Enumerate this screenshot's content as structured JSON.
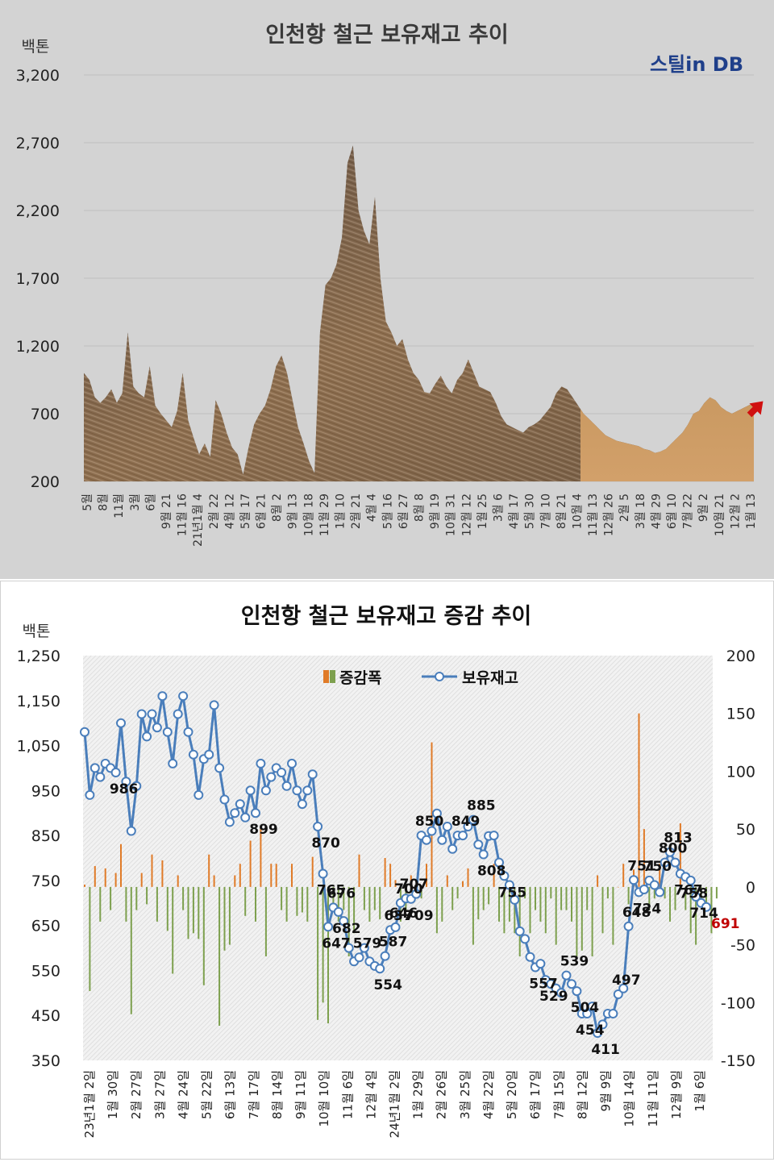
{
  "chart_data": [
    {
      "type": "area",
      "title": "인천항 철근 보유재고 추이",
      "ylabel": "백톤",
      "brand": "스틸in DB",
      "ylim": [
        200,
        3200
      ],
      "yticks": [
        "200",
        "700",
        "1,200",
        "1,700",
        "2,200",
        "2,700",
        "3,200"
      ],
      "xticks": [
        "5월",
        "8월",
        "11월",
        "3월",
        "6월",
        "9월 21",
        "11월 16",
        "21년1월 4",
        "2월 22",
        "4월 12",
        "5월 17",
        "6월 21",
        "8월 2",
        "9월 13",
        "10월 18",
        "11월 29",
        "1월 10",
        "2월 21",
        "4월 4",
        "5월 16",
        "6월 27",
        "8월 8",
        "9월 19",
        "10월 31",
        "12월 12",
        "1월 25",
        "3월 6",
        "4월 17",
        "5월 30",
        "7월 10",
        "8월 21",
        "10월 4",
        "11월 13",
        "12월 26",
        "2월 5",
        "3월 18",
        "4월 29",
        "6월 10",
        "7월 22",
        "9월 2",
        "10월 21",
        "12월 2",
        "1월 13"
      ],
      "values": [
        1000,
        950,
        820,
        780,
        820,
        880,
        780,
        850,
        1300,
        900,
        850,
        820,
        1050,
        760,
        700,
        650,
        600,
        720,
        1000,
        650,
        520,
        400,
        480,
        380,
        800,
        700,
        560,
        450,
        400,
        250,
        450,
        620,
        700,
        760,
        880,
        1050,
        1130,
        1000,
        800,
        600,
        480,
        350,
        260,
        1300,
        1650,
        1700,
        1800,
        2000,
        2550,
        2680,
        2200,
        2050,
        1950,
        2300,
        1700,
        1380,
        1300,
        1200,
        1250,
        1100,
        1000,
        950,
        860,
        850,
        920,
        980,
        900,
        850,
        950,
        1000,
        1100,
        1000,
        900,
        880,
        860,
        780,
        680,
        620,
        600,
        580,
        560,
        600,
        620,
        650,
        700,
        750,
        850,
        900,
        880,
        820,
        760,
        700,
        660,
        620,
        580,
        540,
        520,
        500,
        490,
        480,
        470,
        460,
        440,
        430,
        410,
        420,
        440,
        480,
        520,
        560,
        620,
        700,
        720,
        780,
        820,
        800,
        750,
        720,
        700,
        720,
        740,
        760,
        780
      ]
    },
    {
      "type": "bar",
      "title": "인천항 철근 보유재고 증감 추이",
      "ylabel": "백톤",
      "legend_position": "top",
      "ylim": [
        350,
        1250
      ],
      "y2lim": [
        -150,
        200
      ],
      "yticks": [
        "350",
        "450",
        "550",
        "650",
        "750",
        "850",
        "950",
        "1,050",
        "1,150",
        "1,250"
      ],
      "y2ticks": [
        "-150",
        "-100",
        "-50",
        "0",
        "50",
        "100",
        "150",
        "200"
      ],
      "xticks": [
        "23년1월 2일",
        "1월 30일",
        "2월 27일",
        "3월 27일",
        "4월 24일",
        "5월 22일",
        "6월 13일",
        "7월 17일",
        "8월 14일",
        "9월 11일",
        "10월 10일",
        "11월 6일",
        "12월 4일",
        "24년1월 2일",
        "1월 29일",
        "2월 26일",
        "3월 25일",
        "4월 22일",
        "5월 20일",
        "6월 17일",
        "7월 15일",
        "8월 12일",
        "9월 9일",
        "10월 14일",
        "11월 11일",
        "12월 9일",
        "1월 6일"
      ],
      "series": [
        {
          "name": "보유재고",
          "values": [
            1080,
            940,
            1000,
            980,
            1010,
            1000,
            990,
            1100,
            970,
            860,
            960,
            1120,
            1070,
            1120,
            1090,
            1160,
            1080,
            1010,
            1120,
            1160,
            1080,
            1030,
            940,
            1020,
            1030,
            1140,
            1000,
            930,
            880,
            900,
            920,
            890,
            950,
            900,
            1010,
            950,
            980,
            1000,
            990,
            960,
            1010,
            950,
            920,
            950,
            986,
            870,
            765,
            647,
            690,
            680,
            660,
            600,
            570,
            579,
            600,
            570,
            560,
            554,
            582,
            640,
            646,
            700,
            710,
            709,
            720,
            850,
            840,
            860,
            899,
            840,
            870,
            820,
            850,
            850,
            870,
            885,
            830,
            808,
            849,
            850,
            790,
            760,
            740,
            707,
            637,
            620,
            580,
            557,
            565,
            529,
            520,
            510,
            500,
            539,
            520,
            504,
            454,
            454,
            470,
            411,
            430,
            454,
            454,
            497,
            510,
            648,
            751,
            724,
            730,
            750,
            740,
            724,
            790,
            813,
            790,
            765,
            758,
            750,
            714,
            700,
            691
          ]
        },
        {
          "name": "증감폭",
          "values": [
            2,
            -90,
            18,
            -30,
            16,
            -20,
            12,
            37,
            -30,
            -110,
            -20,
            12,
            -15,
            28,
            -30,
            23,
            -38,
            -75,
            10,
            -20,
            -45,
            -40,
            -45,
            -85,
            28,
            10,
            -120,
            -55,
            -50,
            10,
            20,
            -25,
            40,
            -30,
            50,
            -60,
            20,
            20,
            -20,
            -30,
            20,
            -25,
            -22,
            -30,
            26,
            -115,
            -100,
            -118,
            -20,
            -30,
            -20,
            -60,
            -40,
            28,
            -20,
            -30,
            -20,
            -28,
            25,
            20,
            6,
            -30,
            -20,
            10,
            -5,
            -10,
            20,
            125,
            -40,
            -30,
            10,
            -20,
            -10,
            5,
            16,
            -50,
            -28,
            -20,
            -15,
            20,
            -30,
            -40,
            -30,
            -40,
            -60,
            -10,
            -40,
            -20,
            -30,
            -40,
            -10,
            -50,
            -20,
            -20,
            -30,
            -60,
            -55,
            -20,
            -60,
            10,
            -40,
            -10,
            -50,
            0,
            20,
            -15,
            15,
            150,
            50,
            -20,
            -10,
            20,
            -10,
            -30,
            -20,
            55,
            -20,
            -40,
            -50,
            -10,
            -20,
            -40,
            -10
          ]
        }
      ],
      "annotations": [
        "986",
        "870",
        "765",
        "647",
        "682",
        "700",
        "579",
        "755",
        "554",
        "709",
        "646",
        "899",
        "850",
        "885",
        "808",
        "849",
        "707",
        "637",
        "767",
        "676",
        "557",
        "587",
        "529",
        "539",
        "504",
        "411",
        "751",
        "454",
        "497",
        "648",
        "724",
        "813",
        "750",
        "800",
        "758",
        "714",
        "691"
      ],
      "highlight_color": "#c00000",
      "line_color": "#4a7ebb",
      "bar_pos_color": "#e07b28",
      "bar_neg_color": "#7da04e"
    }
  ]
}
